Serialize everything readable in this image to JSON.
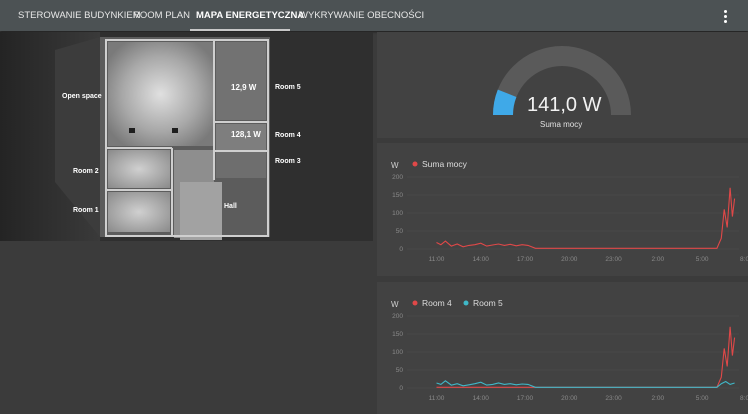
{
  "tabs": [
    {
      "label": "STEROWANIE BUDYNKIEM",
      "active": false
    },
    {
      "label": "ROOM PLAN",
      "active": false
    },
    {
      "label": "MAPA ENERGETYCZNA",
      "active": true
    },
    {
      "label": "WYKRYWANIE OBECNOŚCI",
      "active": false
    }
  ],
  "menu_icon": "more-vertical-icon",
  "floorplan": {
    "rooms": {
      "open_space": "Open space",
      "room5": "Room 5",
      "room4": "Room 4",
      "room3": "Room 3",
      "room2": "Room 2",
      "room1": "Room 1",
      "hall": "Hall"
    },
    "values": {
      "room5": "12,9 W",
      "room4": "128,1 W"
    }
  },
  "gauge": {
    "value": "141,0 W",
    "label": "Suma mocy",
    "level_fraction": 0.12,
    "color": "#3fa9e8",
    "track_color": "#5a5a5a"
  },
  "chart_data": [
    {
      "type": "line",
      "ylabel": "W",
      "yticks": [
        0,
        50,
        100,
        150,
        200
      ],
      "ylim": [
        0,
        200
      ],
      "xticks": [
        "11:00",
        "14:00",
        "17:00",
        "20:00",
        "23:00",
        "2:00",
        "5:00",
        "8:00"
      ],
      "legend_position": "top-left",
      "series": [
        {
          "name": "Suma mocy",
          "color": "#e04848",
          "x": [
            0,
            0.3,
            0.6,
            1.0,
            1.4,
            1.8,
            2.2,
            2.6,
            3.0,
            3.4,
            3.8,
            4.2,
            4.6,
            5.0,
            5.4,
            5.8,
            6.2,
            6.7,
            19.0,
            19.3,
            19.5,
            19.7,
            19.9,
            20.05,
            20.2
          ],
          "y": [
            18,
            12,
            22,
            8,
            14,
            6,
            10,
            12,
            16,
            8,
            11,
            14,
            10,
            13,
            9,
            12,
            10,
            2,
            2,
            30,
            110,
            60,
            170,
            90,
            140
          ]
        }
      ]
    },
    {
      "type": "line",
      "ylabel": "W",
      "yticks": [
        0,
        50,
        100,
        150,
        200
      ],
      "ylim": [
        0,
        200
      ],
      "xticks": [
        "11:00",
        "14:00",
        "17:00",
        "20:00",
        "23:00",
        "2:00",
        "5:00",
        "8:00"
      ],
      "legend_position": "top-left",
      "series": [
        {
          "name": "Room 4",
          "color": "#e04848",
          "x": [
            0,
            6.7,
            8.8,
            9.6,
            12.4,
            19.0,
            19.3,
            19.5,
            19.7,
            19.9,
            20.05,
            20.2
          ],
          "y": [
            2,
            2,
            2,
            2,
            2,
            2,
            30,
            110,
            60,
            170,
            90,
            140
          ]
        },
        {
          "name": "Room 5",
          "color": "#3fb8c8",
          "x": [
            0,
            0.3,
            0.6,
            1.0,
            1.4,
            1.8,
            2.2,
            2.6,
            3.0,
            3.4,
            3.8,
            4.2,
            4.6,
            5.0,
            5.4,
            5.8,
            6.2,
            6.7,
            19.0,
            19.3,
            19.6,
            19.9,
            20.2
          ],
          "y": [
            14,
            10,
            20,
            8,
            12,
            6,
            9,
            12,
            16,
            8,
            10,
            14,
            10,
            12,
            9,
            11,
            10,
            2,
            2,
            12,
            18,
            10,
            14
          ]
        }
      ]
    }
  ]
}
